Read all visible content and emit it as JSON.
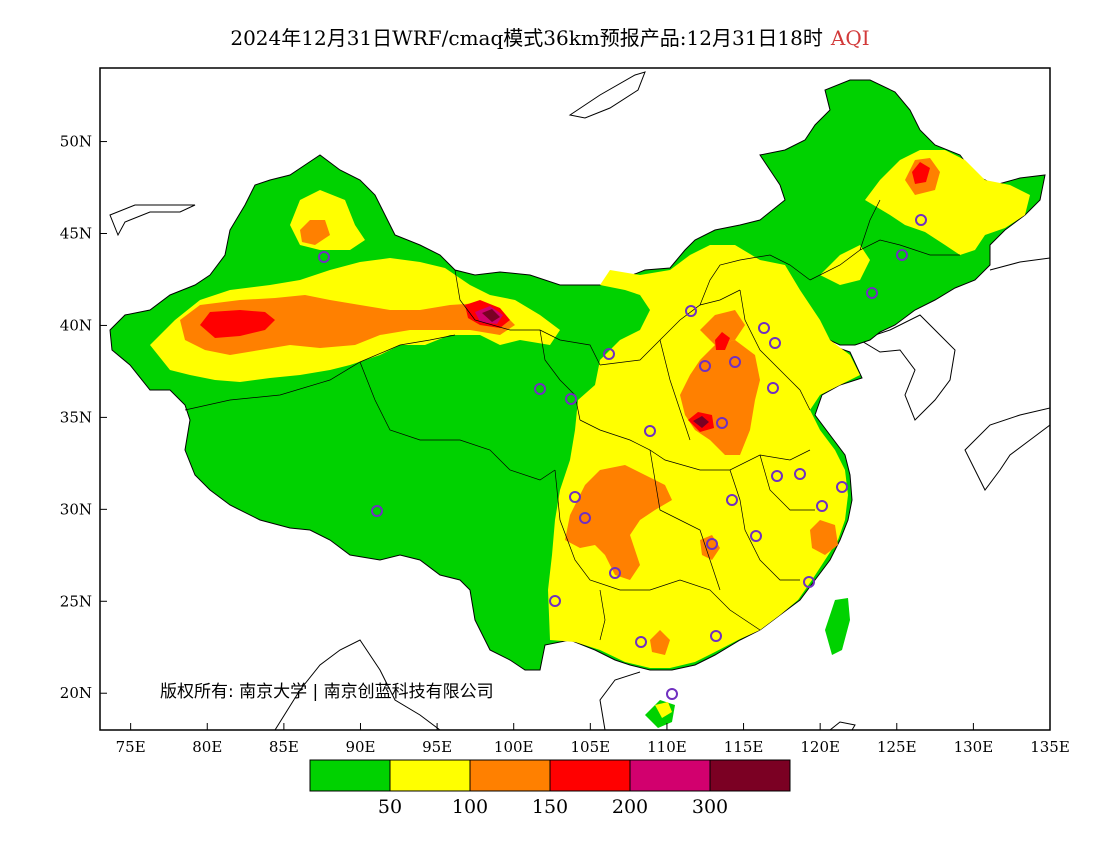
{
  "title": {
    "main": "2024年12月31日WRF/cmaq模式36km预报产品:12月31日18时",
    "variable": "AQI"
  },
  "axes": {
    "x_ticks": [
      "75E",
      "80E",
      "85E",
      "90E",
      "95E",
      "100E",
      "105E",
      "110E",
      "115E",
      "120E",
      "125E",
      "130E",
      "135E"
    ],
    "y_ticks": [
      "20N",
      "25N",
      "30N",
      "35N",
      "40N",
      "45N",
      "50N"
    ],
    "lon_range": [
      73,
      135
    ],
    "lat_range": [
      18,
      54
    ]
  },
  "copyright": "版权所有: 南京大学 | 南京创蓝科技有限公司",
  "legend": {
    "colors": [
      "#00d200",
      "#ffff00",
      "#ff8000",
      "#ff0000",
      "#d2006e",
      "#7b0023"
    ],
    "labels": [
      "50",
      "100",
      "150",
      "200",
      "300"
    ]
  },
  "colors": {
    "ocean": "#ffffff",
    "good": "#00d200",
    "moderate": "#ffff00",
    "usg": "#ff8000",
    "unhealthy": "#ff0000",
    "very_unhealthy": "#d2006e",
    "hazardous": "#7b0023",
    "station_marker": "#7030c0"
  }
}
